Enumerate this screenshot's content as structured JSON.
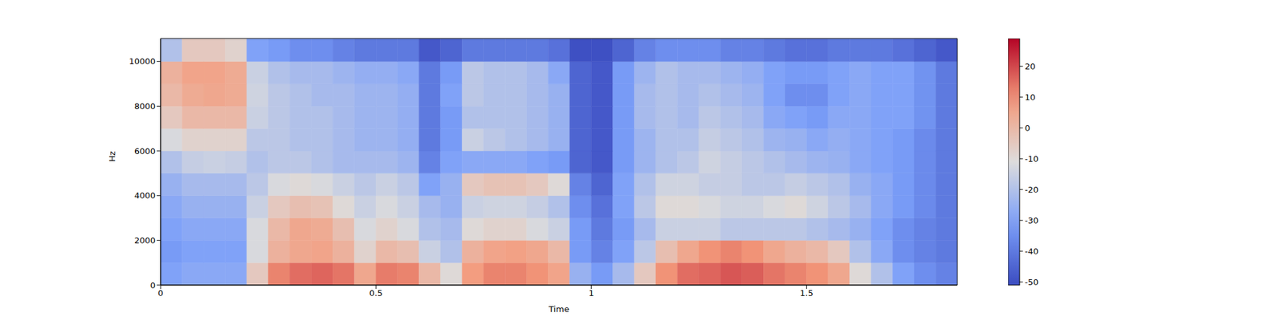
{
  "chart_data": {
    "type": "heatmap",
    "xlabel": "Time",
    "ylabel": "Hz",
    "xlim": [
      0,
      1.85
    ],
    "xticks": [
      0,
      0.5,
      1,
      1.5
    ],
    "ylim": [
      0,
      11025
    ],
    "yticks": [
      0,
      2000,
      4000,
      6000,
      8000,
      10000
    ],
    "x_edges": [
      0,
      0.05,
      0.1,
      0.15,
      0.2,
      0.25,
      0.3,
      0.35,
      0.4,
      0.45,
      0.5,
      0.55,
      0.6,
      0.65,
      0.7,
      0.75,
      0.8,
      0.85,
      0.9,
      0.95,
      1,
      1.05,
      1.1,
      1.15,
      1.2,
      1.25,
      1.3,
      1.35,
      1.4,
      1.45,
      1.5,
      1.55,
      1.6,
      1.65,
      1.7,
      1.75,
      1.8,
      1.85
    ],
    "y_edges": [
      0,
      1000,
      2000,
      3000,
      4000,
      5000,
      6000,
      7000,
      8000,
      9000,
      10000,
      11025
    ],
    "cells": [
      [
        -30,
        -28,
        -28,
        -28,
        -5,
        12,
        15,
        16,
        14,
        5,
        13,
        12,
        0,
        -10,
        8,
        12,
        12,
        10,
        6,
        -25,
        -32,
        -22,
        -5,
        10,
        15,
        16,
        18,
        17,
        14,
        12,
        10,
        5,
        -10,
        -20,
        -30,
        -35,
        -38
      ],
      [
        -32,
        -30,
        -30,
        -30,
        -12,
        2,
        5,
        6,
        2,
        -8,
        0,
        -2,
        -15,
        -20,
        2,
        6,
        7,
        5,
        0,
        -32,
        -38,
        -30,
        -18,
        -2,
        5,
        10,
        12,
        10,
        5,
        2,
        0,
        -5,
        -20,
        -28,
        -35,
        -38,
        -40
      ],
      [
        -30,
        -28,
        -28,
        -28,
        -12,
        0,
        5,
        4,
        -2,
        -12,
        -8,
        -12,
        -20,
        -22,
        -10,
        -8,
        -8,
        -12,
        -15,
        -32,
        -40,
        -32,
        -22,
        -15,
        -15,
        -15,
        -18,
        -18,
        -18,
        -18,
        -20,
        -22,
        -25,
        -30,
        -35,
        -38,
        -40
      ],
      [
        -28,
        -25,
        -25,
        -25,
        -15,
        -5,
        -2,
        -3,
        -10,
        -15,
        -12,
        -15,
        -22,
        -25,
        -15,
        -14,
        -14,
        -16,
        -20,
        -35,
        -42,
        -30,
        -18,
        -10,
        -10,
        -12,
        -14,
        -14,
        -12,
        -10,
        -14,
        -18,
        -22,
        -28,
        -32,
        -36,
        -40
      ],
      [
        -25,
        -22,
        -22,
        -22,
        -18,
        -12,
        -10,
        -12,
        -15,
        -18,
        -15,
        -18,
        -30,
        -25,
        -5,
        -3,
        -3,
        -5,
        -10,
        -38,
        -45,
        -30,
        -20,
        -14,
        -14,
        -16,
        -16,
        -18,
        -18,
        -16,
        -18,
        -20,
        -25,
        -28,
        -32,
        -36,
        -40
      ],
      [
        -20,
        -16,
        -15,
        -16,
        -20,
        -18,
        -18,
        -20,
        -22,
        -22,
        -22,
        -24,
        -38,
        -30,
        -28,
        -28,
        -28,
        -30,
        -32,
        -45,
        -48,
        -32,
        -24,
        -20,
        -18,
        -14,
        -16,
        -18,
        -20,
        -22,
        -24,
        -25,
        -28,
        -30,
        -32,
        -36,
        -40
      ],
      [
        -12,
        -8,
        -8,
        -8,
        -18,
        -18,
        -20,
        -20,
        -22,
        -24,
        -24,
        -26,
        -40,
        -32,
        -15,
        -18,
        -20,
        -22,
        -25,
        -45,
        -48,
        -32,
        -24,
        -20,
        -20,
        -16,
        -18,
        -20,
        -24,
        -25,
        -28,
        -26,
        -28,
        -30,
        -32,
        -36,
        -40
      ],
      [
        -5,
        0,
        0,
        0,
        -15,
        -18,
        -20,
        -20,
        -22,
        -24,
        -24,
        -26,
        -40,
        -32,
        -20,
        -20,
        -20,
        -22,
        -25,
        -45,
        -48,
        -32,
        -22,
        -20,
        -22,
        -18,
        -20,
        -22,
        -28,
        -30,
        -32,
        -28,
        -28,
        -30,
        -30,
        -34,
        -40
      ],
      [
        0,
        4,
        5,
        4,
        -14,
        -18,
        -20,
        -22,
        -22,
        -24,
        -24,
        -26,
        -40,
        -30,
        -18,
        -20,
        -20,
        -22,
        -25,
        -45,
        -48,
        -32,
        -22,
        -20,
        -22,
        -20,
        -22,
        -24,
        -30,
        -35,
        -35,
        -30,
        -28,
        -30,
        -30,
        -34,
        -40
      ],
      [
        2,
        6,
        6,
        4,
        -15,
        -20,
        -22,
        -22,
        -24,
        -26,
        -26,
        -28,
        -40,
        -32,
        -18,
        -20,
        -20,
        -22,
        -28,
        -45,
        -48,
        -32,
        -24,
        -20,
        -22,
        -22,
        -24,
        -26,
        -30,
        -32,
        -32,
        -30,
        -28,
        -30,
        -30,
        -34,
        -40
      ],
      [
        -20,
        -5,
        -5,
        -8,
        -30,
        -32,
        -35,
        -35,
        -38,
        -40,
        -40,
        -40,
        -48,
        -45,
        -40,
        -40,
        -40,
        -40,
        -42,
        -50,
        -50,
        -45,
        -38,
        -35,
        -35,
        -35,
        -38,
        -38,
        -40,
        -42,
        -42,
        -40,
        -40,
        -40,
        -42,
        -45,
        -48
      ]
    ],
    "colorbar": {
      "range": [
        -51,
        29
      ],
      "ticks": [
        -50,
        -40,
        -30,
        -20,
        -10,
        0,
        10,
        20
      ]
    }
  }
}
